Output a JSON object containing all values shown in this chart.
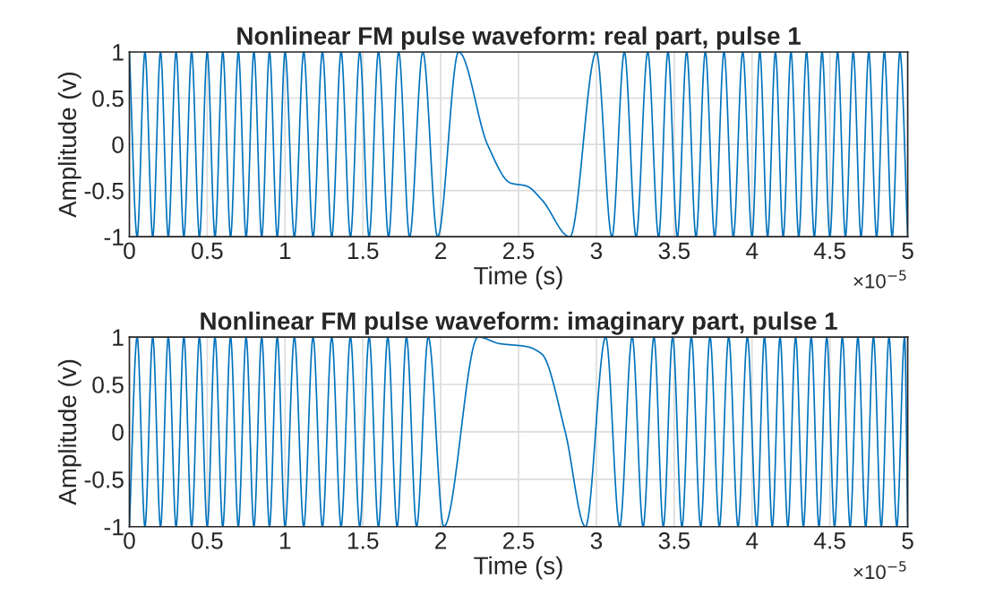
{
  "chart_data": [
    {
      "type": "line",
      "title": "Nonlinear FM pulse waveform: real part, pulse 1",
      "xlabel": "Time (s)",
      "ylabel": "Amplitude (v)",
      "annotations": [
        "×10$^{−5}$"
      ],
      "grid": true,
      "line_style": "solid",
      "marker": "none",
      "xlim": [
        0,
        5
      ],
      "xticks": [
        0,
        0.5,
        1,
        1.5,
        2,
        2.5,
        3,
        3.5,
        4,
        4.5,
        5
      ],
      "ylim": [
        -1,
        1
      ],
      "yticks": [
        -1,
        -0.5,
        0,
        0.5,
        1
      ],
      "series": [
        {
          "color": "#0072bd",
          "x": [
            0,
            0.05,
            0.1,
            0.15,
            0.2,
            0.25,
            0.3,
            0.35,
            0.4,
            0.45,
            0.5,
            0.55,
            0.6,
            0.65,
            0.7,
            0.75,
            0.8,
            0.85,
            0.9,
            0.95,
            1.0,
            1.06,
            1.12,
            1.18,
            1.24,
            1.3,
            1.36,
            1.42,
            1.48,
            1.54,
            1.6,
            1.665,
            1.73,
            1.8,
            1.885,
            1.98,
            2.115,
            2.3,
            2.45,
            2.55,
            2.65,
            2.83,
            3.0,
            3.1,
            3.18,
            3.255,
            3.33,
            3.4,
            3.46,
            3.52,
            3.58,
            3.64,
            3.7,
            3.76,
            3.82,
            3.88,
            3.94,
            4.0,
            4.05,
            4.1,
            4.15,
            4.2,
            4.25,
            4.3,
            4.35,
            4.4,
            4.45,
            4.5,
            4.55,
            4.6,
            4.65,
            4.7,
            4.75,
            4.8,
            4.85,
            4.9,
            4.95,
            5.0
          ],
          "values": [
            1,
            -1,
            1,
            -1,
            1,
            -1,
            1,
            -1,
            1,
            -1,
            1,
            -1,
            1,
            -1,
            1,
            -1,
            1,
            -1,
            1,
            -1,
            1,
            -1,
            1,
            -1,
            1,
            -1,
            1,
            -1,
            1,
            -1,
            1,
            -1,
            1,
            -1,
            1,
            -1,
            1,
            0,
            -0.42,
            -0.45,
            -0.6,
            -1,
            1,
            -1,
            1,
            -1,
            1,
            -1,
            1,
            -1,
            1,
            -1,
            1,
            -1,
            1,
            -1,
            1,
            -1,
            1,
            -1,
            1,
            -1,
            1,
            -1,
            1,
            -1,
            1,
            -1,
            1,
            -1,
            1,
            -1,
            1,
            -1,
            1,
            -1,
            1,
            -1
          ]
        }
      ]
    },
    {
      "type": "line",
      "title": "Nonlinear FM pulse waveform: imaginary part, pulse 1",
      "xlabel": "Time (s)",
      "ylabel": "Amplitude (v)",
      "annotations": [
        "×10$^{−5}$"
      ],
      "grid": true,
      "line_style": "solid",
      "marker": "none",
      "xlim": [
        0,
        5
      ],
      "xticks": [
        0,
        0.5,
        1,
        1.5,
        2,
        2.5,
        3,
        3.5,
        4,
        4.5,
        5
      ],
      "ylim": [
        -1,
        1
      ],
      "yticks": [
        -1,
        -0.5,
        0,
        0.5,
        1
      ],
      "series": [
        {
          "color": "#0072bd",
          "x": [
            0,
            0.05,
            0.1,
            0.15,
            0.2,
            0.25,
            0.3,
            0.35,
            0.4,
            0.45,
            0.5,
            0.55,
            0.6,
            0.65,
            0.7,
            0.75,
            0.8,
            0.85,
            0.9,
            0.95,
            1.0,
            1.06,
            1.12,
            1.18,
            1.24,
            1.3,
            1.36,
            1.42,
            1.48,
            1.54,
            1.6,
            1.66,
            1.72,
            1.78,
            1.845,
            1.92,
            2.02,
            2.24,
            2.38,
            2.55,
            2.65,
            2.8,
            2.93,
            3.06,
            3.15,
            3.23,
            3.3,
            3.37,
            3.43,
            3.49,
            3.55,
            3.61,
            3.67,
            3.73,
            3.79,
            3.85,
            3.91,
            3.97,
            4.03,
            4.08,
            4.13,
            4.18,
            4.23,
            4.28,
            4.33,
            4.38,
            4.43,
            4.48,
            4.53,
            4.58,
            4.63,
            4.68,
            4.73,
            4.78,
            4.83,
            4.88,
            4.93,
            4.98,
            5.0
          ],
          "values": [
            -1,
            1,
            -1,
            1,
            -1,
            1,
            -1,
            1,
            -1,
            1,
            -1,
            1,
            -1,
            1,
            -1,
            1,
            -1,
            1,
            -1,
            1,
            -1,
            1,
            -1,
            1,
            -1,
            1,
            -1,
            1,
            -1,
            1,
            -1,
            1,
            -1,
            1,
            -1,
            1,
            -1,
            1,
            0.93,
            0.9,
            0.82,
            0,
            -1,
            1,
            -1,
            1,
            -1,
            1,
            -1,
            1,
            -1,
            1,
            -1,
            1,
            -1,
            1,
            -1,
            1,
            -1,
            1,
            -1,
            1,
            -1,
            1,
            -1,
            1,
            -1,
            1,
            -1,
            1,
            -1,
            1,
            -1,
            1,
            -1,
            1,
            -1,
            1,
            -1
          ]
        }
      ]
    }
  ]
}
